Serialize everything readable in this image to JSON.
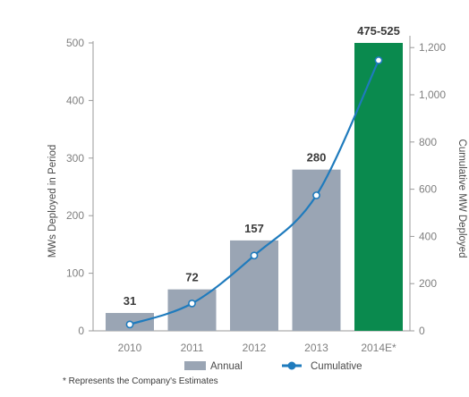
{
  "chart_data": {
    "type": "bar",
    "categories": [
      "2010",
      "2011",
      "2012",
      "2013",
      "2014E*"
    ],
    "series": [
      {
        "name": "Annual",
        "axis": "left",
        "type": "bar",
        "values": [
          31,
          72,
          157,
          280,
          500
        ],
        "labels": [
          "31",
          "72",
          "157",
          "280",
          "475-525"
        ],
        "colors": [
          "#9aa5b4",
          "#9aa5b4",
          "#9aa5b4",
          "#9aa5b4",
          "#0a8a4e"
        ]
      },
      {
        "name": "Cumulative",
        "axis": "right",
        "type": "line",
        "values": [
          27,
          116,
          319,
          574,
          1146
        ],
        "color": "#1f7bbd"
      }
    ],
    "ylabel": "MWs Deployed in Period",
    "ylim": [
      0,
      500
    ],
    "yticks": [
      "0",
      "100",
      "200",
      "300",
      "400",
      "500"
    ],
    "y2label": "Cumulative MW Deployed",
    "y2lim": [
      0,
      1250
    ],
    "y2ticks": [
      "0",
      "200",
      "400",
      "600",
      "800",
      "1,000",
      "1,200"
    ],
    "legend": {
      "position": "bottom",
      "annual": "Annual",
      "cumulative": "Cumulative"
    },
    "grid": false
  },
  "footnote": "* Represents the Company's Estimates"
}
